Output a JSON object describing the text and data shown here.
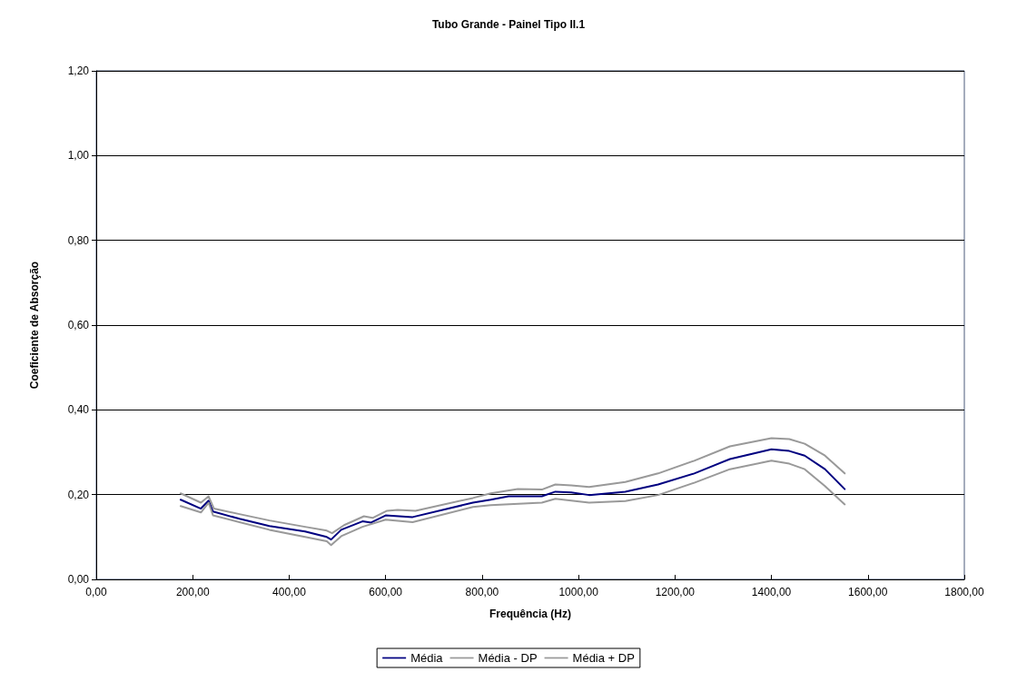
{
  "chart_data": {
    "type": "line",
    "title": "Tubo Grande - Painel Tipo II.1",
    "xlabel": "Frequência (Hz)",
    "ylabel": "Coeficiente de Absorção",
    "xlim": [
      0,
      1800
    ],
    "xticks": [
      {
        "value": 0,
        "label": "0,00"
      },
      {
        "value": 200,
        "label": "200,00"
      },
      {
        "value": 400,
        "label": "400,00"
      },
      {
        "value": 600,
        "label": "600,00"
      },
      {
        "value": 800,
        "label": "800,00"
      },
      {
        "value": 1000,
        "label": "1000,00"
      },
      {
        "value": 1200,
        "label": "1200,00"
      },
      {
        "value": 1400,
        "label": "1400,00"
      },
      {
        "value": 1600,
        "label": "1600,00"
      },
      {
        "value": 1800,
        "label": "1800,00"
      }
    ],
    "ylim": [
      0,
      1.2
    ],
    "yticks": [
      {
        "value": 0,
        "label": "0,00"
      },
      {
        "value": 0.2,
        "label": "0,20"
      },
      {
        "value": 0.4,
        "label": "0,40"
      },
      {
        "value": 0.6,
        "label": "0,60"
      },
      {
        "value": 0.8,
        "label": "0,80"
      },
      {
        "value": 1.0,
        "label": "1,00"
      },
      {
        "value": 1.2,
        "label": "1,20"
      }
    ],
    "grid": "y",
    "legend": "bottom",
    "marker": "none",
    "line_style": "solid",
    "series": [
      {
        "name": "Média",
        "color": "#000080",
        "x": [
          175,
          217,
          233,
          242,
          297,
          359,
          433,
          478,
          487,
          508,
          552,
          570,
          600,
          656,
          781,
          818,
          855,
          924,
          952,
          985,
          1022,
          1097,
          1165,
          1240,
          1314,
          1400,
          1437,
          1469,
          1511,
          1552
        ],
        "values": [
          0.188,
          0.167,
          0.186,
          0.16,
          0.143,
          0.126,
          0.113,
          0.1,
          0.094,
          0.117,
          0.137,
          0.134,
          0.151,
          0.147,
          0.181,
          0.188,
          0.196,
          0.196,
          0.207,
          0.205,
          0.199,
          0.207,
          0.224,
          0.25,
          0.284,
          0.307,
          0.303,
          0.292,
          0.26,
          0.213
        ]
      },
      {
        "name": "Média - DP",
        "color": "#999999",
        "x": [
          175,
          217,
          233,
          242,
          297,
          359,
          433,
          478,
          487,
          508,
          552,
          600,
          656,
          781,
          818,
          924,
          952,
          1022,
          1097,
          1165,
          1240,
          1314,
          1400,
          1437,
          1469,
          1511,
          1552
        ],
        "values": [
          0.173,
          0.158,
          0.181,
          0.151,
          0.135,
          0.117,
          0.1,
          0.09,
          0.081,
          0.102,
          0.124,
          0.141,
          0.135,
          0.171,
          0.175,
          0.181,
          0.19,
          0.181,
          0.185,
          0.199,
          0.228,
          0.26,
          0.28,
          0.273,
          0.26,
          0.22,
          0.177
        ]
      },
      {
        "name": "Média + DP",
        "color": "#999999",
        "x": [
          175,
          217,
          233,
          244,
          297,
          359,
          433,
          478,
          489,
          514,
          555,
          573,
          603,
          625,
          662,
          781,
          818,
          874,
          924,
          952,
          985,
          1022,
          1097,
          1165,
          1240,
          1314,
          1400,
          1437,
          1469,
          1511,
          1552
        ],
        "values": [
          0.203,
          0.181,
          0.196,
          0.167,
          0.154,
          0.139,
          0.124,
          0.115,
          0.109,
          0.128,
          0.149,
          0.145,
          0.162,
          0.164,
          0.162,
          0.192,
          0.203,
          0.213,
          0.212,
          0.224,
          0.222,
          0.218,
          0.23,
          0.25,
          0.28,
          0.314,
          0.333,
          0.331,
          0.32,
          0.292,
          0.25
        ]
      }
    ]
  }
}
